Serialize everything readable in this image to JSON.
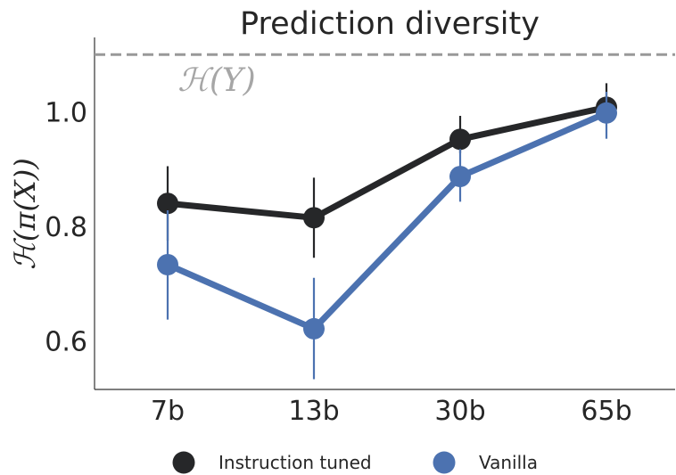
{
  "chart_data": {
    "type": "line",
    "title": "Prediction diversity",
    "ylabel": "ℋ(π(X))",
    "xlabel": "",
    "categories": [
      "7b",
      "13b",
      "30b",
      "65b"
    ],
    "ylim": [
      0.515,
      1.13
    ],
    "yticks": [
      0.6,
      0.8,
      1.0
    ],
    "ytick_labels": [
      "0.6",
      "0.8",
      "1.0"
    ],
    "grid": false,
    "legend_position": "bottom",
    "reference_line": {
      "label": "ℋ(Y)",
      "value": 1.1,
      "style": "dashed",
      "color": "#999999"
    },
    "series": [
      {
        "name": "Instruction tuned",
        "color": "#262729",
        "values": [
          0.84,
          0.815,
          0.952,
          1.008
        ],
        "err_low": [
          0.775,
          0.745,
          0.928,
          0.99
        ],
        "err_high": [
          0.905,
          0.885,
          0.993,
          1.05
        ]
      },
      {
        "name": "Vanilla",
        "color": "#4c72b0",
        "values": [
          0.733,
          0.621,
          0.887,
          0.998
        ],
        "err_low": [
          0.637,
          0.533,
          0.843,
          0.953
        ],
        "err_high": [
          0.828,
          0.71,
          0.935,
          1.035
        ]
      }
    ]
  }
}
